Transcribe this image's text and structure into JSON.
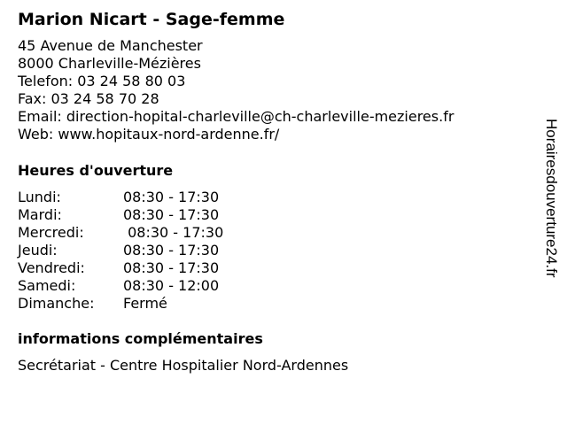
{
  "title": "Marion Nicart - Sage-femme",
  "contact": {
    "street": "45 Avenue de Manchester",
    "city": "8000 Charleville-Mézières",
    "phone": "Telefon: 03 24 58 80 03",
    "fax": "Fax: 03 24 58 70 28",
    "email": "Email: direction-hopital-charleville@ch-charleville-mezieres.fr",
    "web": "Web: www.hopitaux-nord-ardenne.fr/"
  },
  "hours_heading": "Heures d'ouverture",
  "hours": [
    {
      "day": "Lundi:",
      "time": "08:30 - 17:30"
    },
    {
      "day": "Mardi:",
      "time": "08:30 - 17:30"
    },
    {
      "day": "Mercredi:",
      "time": " 08:30 - 17:30"
    },
    {
      "day": "Jeudi:",
      "time": "08:30 - 17:30"
    },
    {
      "day": "Vendredi:",
      "time": "08:30 - 17:30"
    },
    {
      "day": "Samedi:",
      "time": "08:30 - 12:00"
    },
    {
      "day": "Dimanche:",
      "time": "Fermé"
    }
  ],
  "info_heading": "informations complémentaires",
  "info_text": "Secrétariat - Centre Hospitalier Nord-Ardennes",
  "watermark": "Horairesdouverture24.fr"
}
